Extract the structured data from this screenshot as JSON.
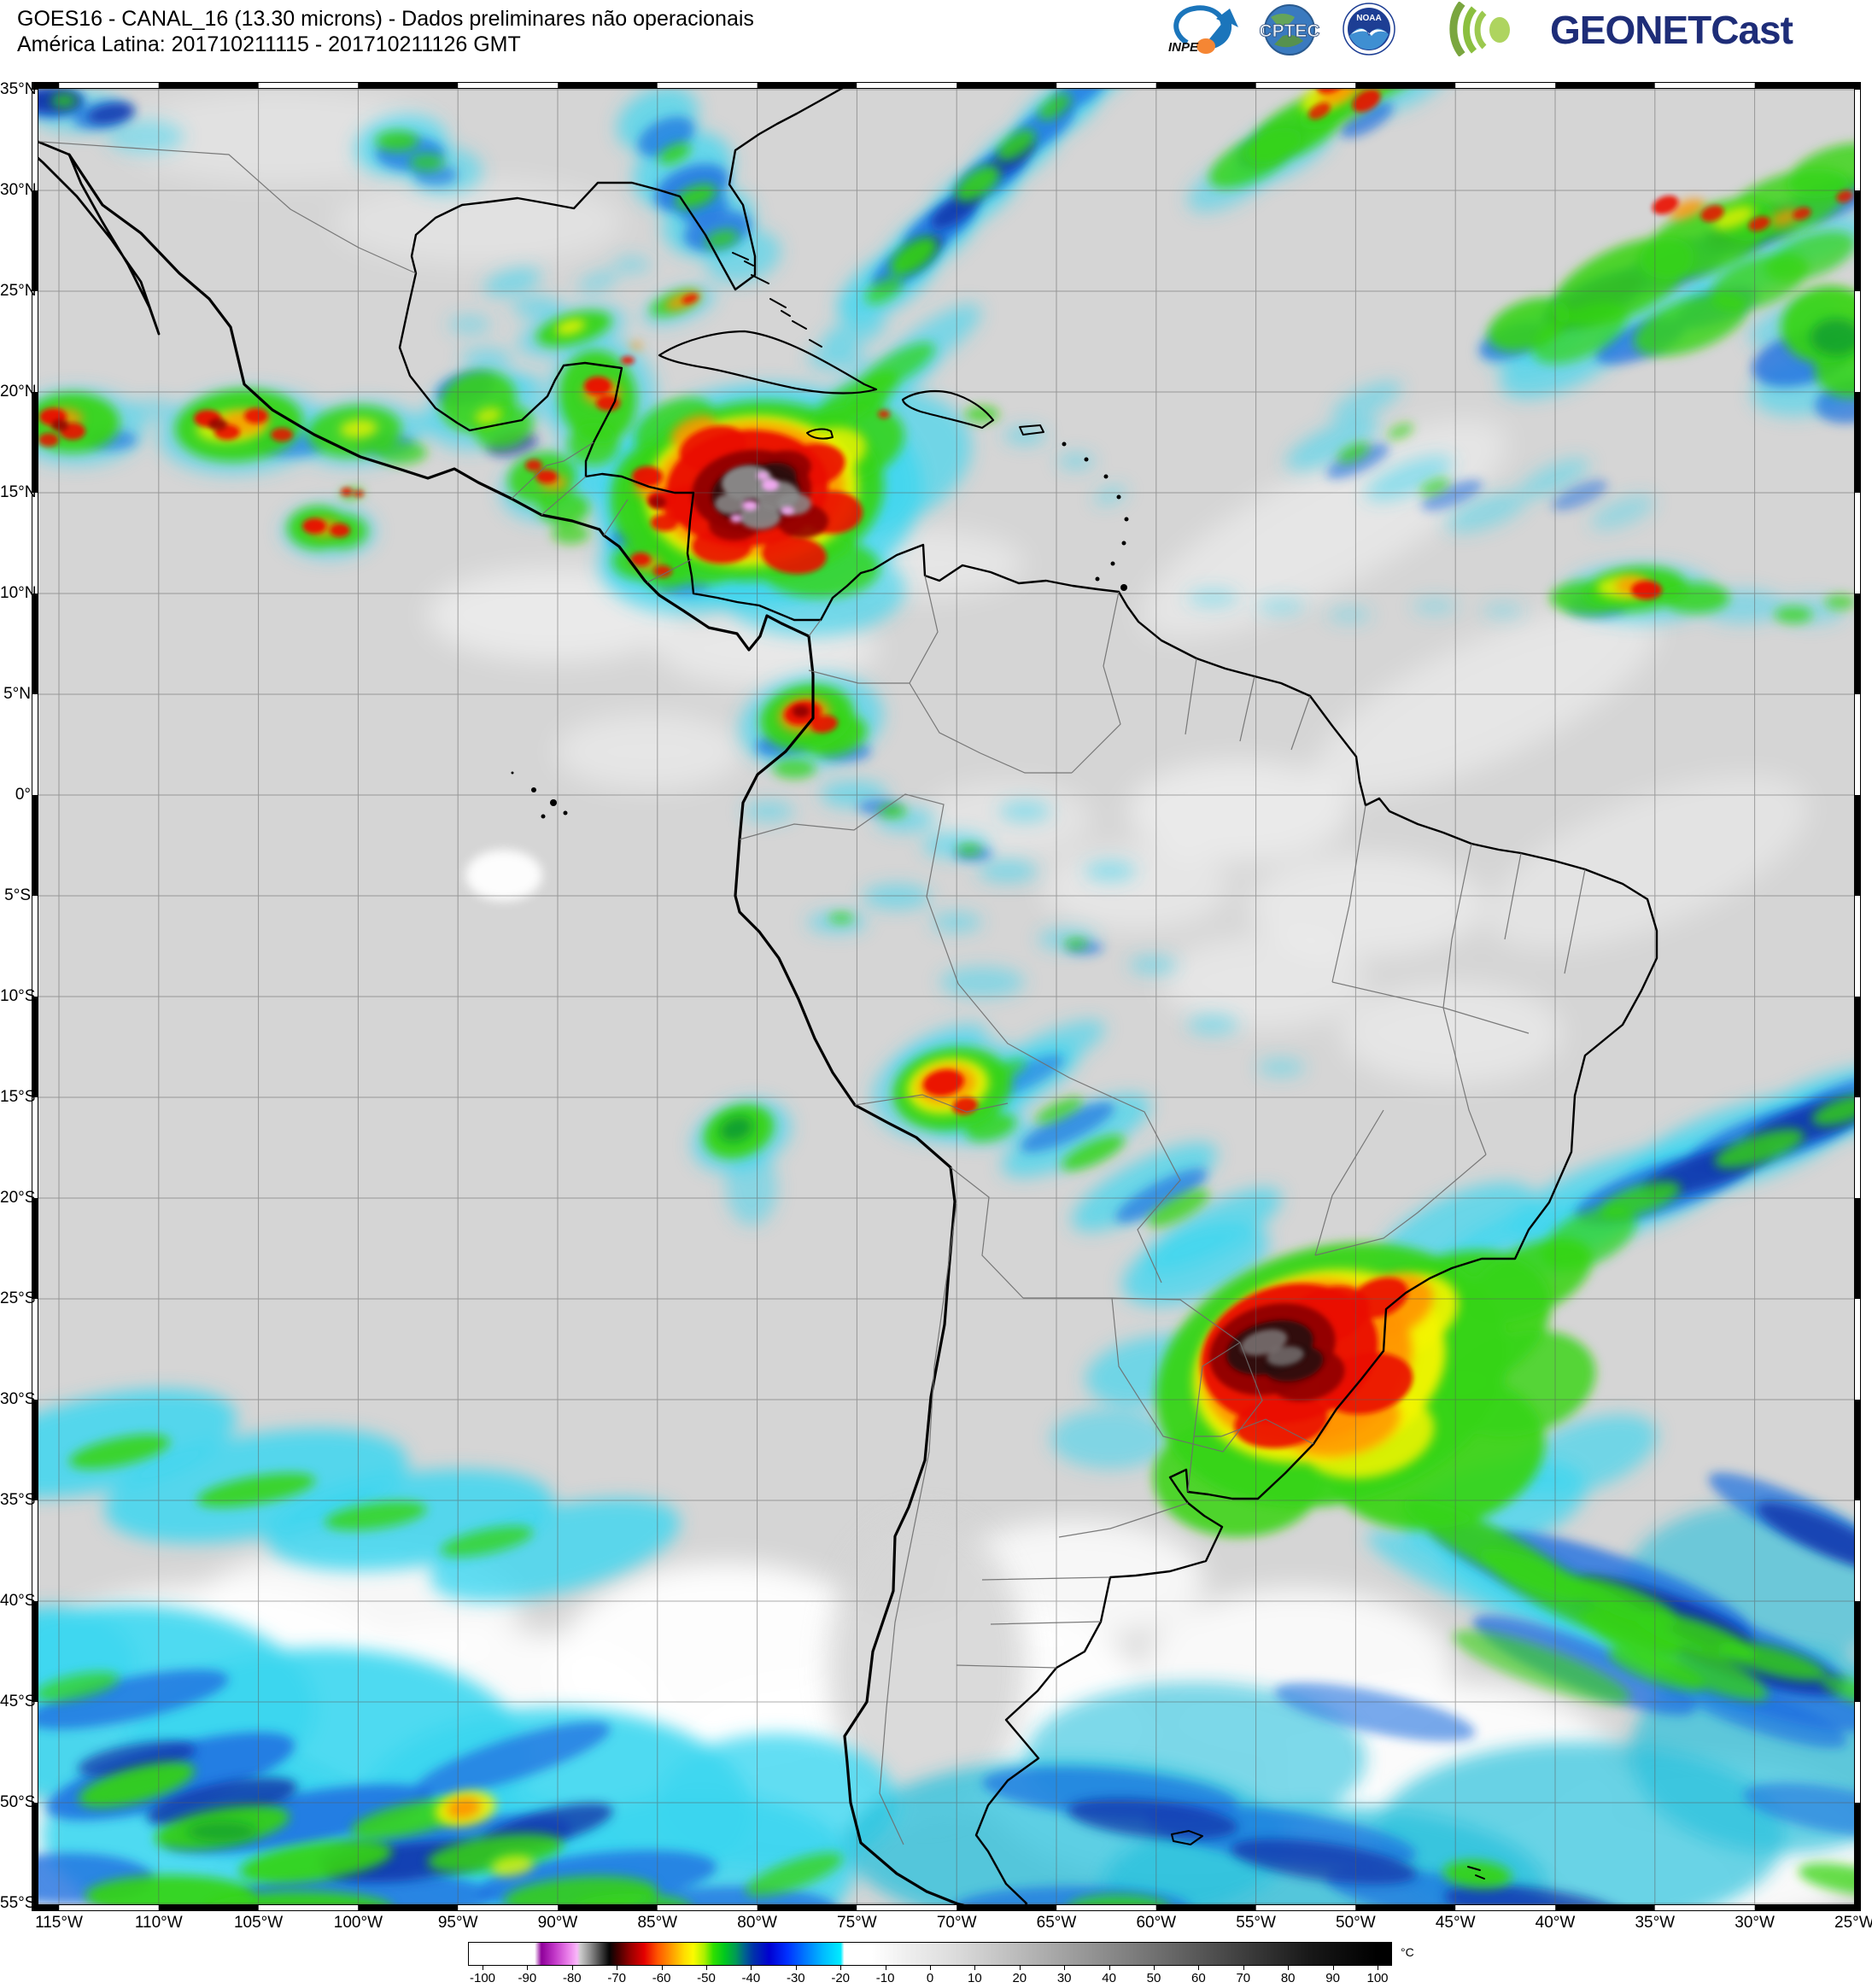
{
  "header": {
    "title_line1": "GOES16 - CANAL_16 (13.30 microns) - Dados preliminares não operacionais",
    "title_line2": "América Latina: 201710211115 - 201710211126 GMT"
  },
  "logos": {
    "inpe_label": "INPE",
    "cptec_label": "CPTEC",
    "noaa_label": "NOAA",
    "geonetcast_label": "GEONETCast"
  },
  "map": {
    "lat_labels": [
      "35°N",
      "30°N",
      "25°N",
      "20°N",
      "15°N",
      "10°N",
      "5°N",
      "0°",
      "5°S",
      "10°S",
      "15°S",
      "20°S",
      "25°S",
      "30°S",
      "35°S",
      "40°S",
      "45°S",
      "50°S",
      "55°S"
    ],
    "lon_labels": [
      "115°W",
      "110°W",
      "105°W",
      "100°W",
      "95°W",
      "90°W",
      "85°W",
      "80°W",
      "75°W",
      "70°W",
      "65°W",
      "60°W",
      "55°W",
      "50°W",
      "45°W",
      "40°W",
      "35°W",
      "30°W",
      "25°W"
    ]
  },
  "colorbar": {
    "unit": "°C",
    "tick_labels": [
      "-100",
      "-90",
      "-80",
      "-70",
      "-60",
      "-50",
      "-40",
      "-30",
      "-20",
      "-10",
      "0",
      "10",
      "20",
      "30",
      "40",
      "50",
      "60",
      "70",
      "80",
      "90",
      "100"
    ],
    "stops": [
      [
        -100,
        "#ffffff"
      ],
      [
        -88.5,
        "#ffffff"
      ],
      [
        -87,
        "#8f009a"
      ],
      [
        -84,
        "#c238c8"
      ],
      [
        -81,
        "#ea80ea"
      ],
      [
        -79,
        "#f9b8f9"
      ],
      [
        -78.3,
        "#cccccc"
      ],
      [
        -76,
        "#8d8d8d"
      ],
      [
        -73.5,
        "#3c3c3c"
      ],
      [
        -71.8,
        "#050505"
      ],
      [
        -70,
        "#3f0000"
      ],
      [
        -67,
        "#9b0000"
      ],
      [
        -64,
        "#e40000"
      ],
      [
        -61,
        "#ff5500"
      ],
      [
        -58,
        "#ff9900"
      ],
      [
        -55,
        "#ffdd00"
      ],
      [
        -53,
        "#fbfb00"
      ],
      [
        -50.5,
        "#aaf000"
      ],
      [
        -48.5,
        "#2fe000"
      ],
      [
        -46,
        "#00c81e"
      ],
      [
        -43.5,
        "#009a55"
      ],
      [
        -41.5,
        "#00628f"
      ],
      [
        -39.5,
        "#0031aa"
      ],
      [
        -36,
        "#0000d2"
      ],
      [
        -32,
        "#0030ff"
      ],
      [
        -28,
        "#0077ff"
      ],
      [
        -24,
        "#00baff"
      ],
      [
        -20,
        "#00ecff"
      ],
      [
        -19.2,
        "#ffffff"
      ],
      [
        -13,
        "#ffffff"
      ],
      [
        -5,
        "#eeeeee"
      ],
      [
        5,
        "#dddddd"
      ],
      [
        15,
        "#c6c6c6"
      ],
      [
        25,
        "#aeaeae"
      ],
      [
        35,
        "#969696"
      ],
      [
        45,
        "#7e7e7e"
      ],
      [
        55,
        "#656565"
      ],
      [
        65,
        "#4b4b4b"
      ],
      [
        75,
        "#323232"
      ],
      [
        85,
        "#181818"
      ],
      [
        100,
        "#000000"
      ]
    ]
  }
}
